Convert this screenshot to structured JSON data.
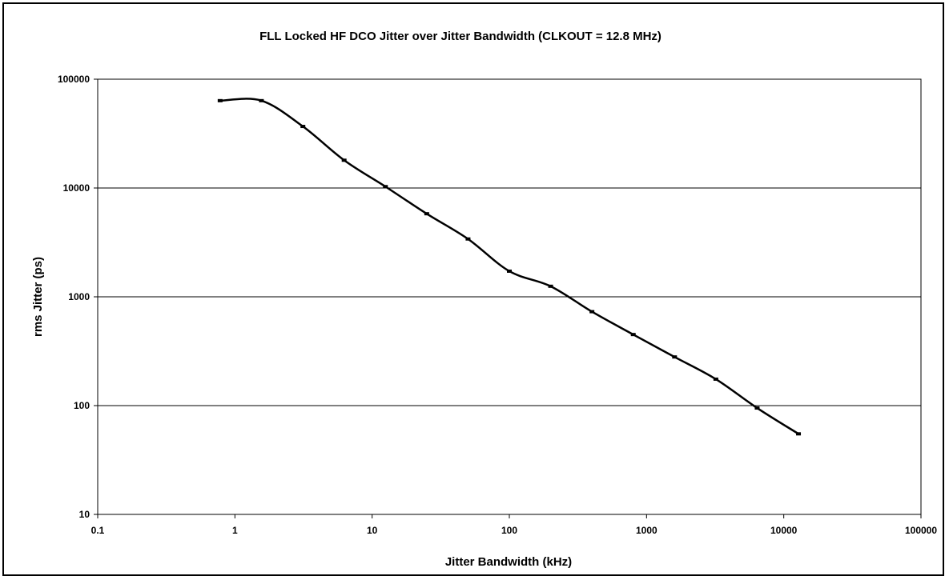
{
  "chart_data": {
    "type": "line",
    "title": "FLL Locked HF DCO Jitter over Jitter Bandwidth (CLKOUT = 12.8 MHz)",
    "xlabel": "Jitter Bandwidth (kHz)",
    "ylabel": "rms Jitter (ps)",
    "xscale": "log",
    "yscale": "log",
    "xlim": [
      0.1,
      100000
    ],
    "ylim": [
      10,
      100000
    ],
    "x_ticks": [
      "0.1",
      "1",
      "10",
      "100",
      "1000",
      "10000",
      "100000"
    ],
    "y_ticks": [
      "10",
      "100",
      "1000",
      "10000",
      "100000"
    ],
    "grid": "horizontal",
    "legend": "none",
    "line_color": "#000000",
    "series": [
      {
        "x": [
          0.78,
          1.56,
          3.13,
          6.25,
          12.5,
          25,
          50,
          100,
          200,
          400,
          800,
          1600,
          3200,
          6400,
          12800
        ],
        "values": [
          63500,
          63500,
          36800,
          18000,
          10300,
          5800,
          3400,
          1720,
          1250,
          730,
          450,
          280,
          175,
          95,
          55
        ]
      }
    ]
  }
}
